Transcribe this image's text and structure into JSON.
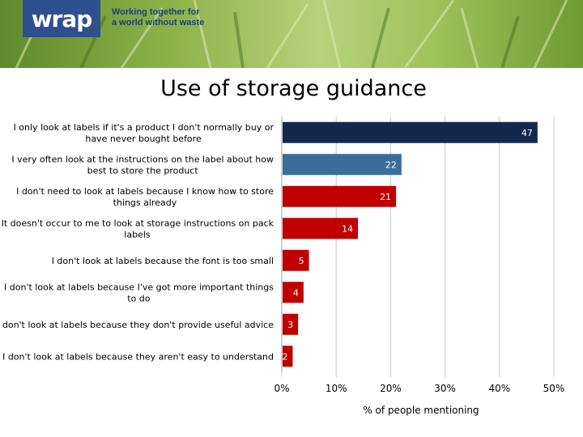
{
  "banner": {
    "logo": "wrap",
    "tagline_line1": "Working together for",
    "tagline_line2": "a world without waste"
  },
  "chart_data": {
    "type": "bar",
    "orientation": "horizontal",
    "title": "Use of storage guidance",
    "xlabel": "% of people mentioning",
    "ylabel": "",
    "xlim": [
      0,
      50
    ],
    "xticks": [
      "0%",
      "10%",
      "20%",
      "30%",
      "40%",
      "50%"
    ],
    "grid": true,
    "categories": [
      [
        "I only look at labels if it's a product I don't normally buy or",
        "have never bought before"
      ],
      [
        "I very often look at the instructions on the label about how",
        "best to store the product"
      ],
      [
        "I don't need to look at labels because I know how to store",
        "things already"
      ],
      [
        "It doesn't occur to me to look at storage instructions on pack",
        "labels"
      ],
      [
        "I don't look at labels because the font is too small"
      ],
      [
        "I don't look at labels because I've got more important things",
        "to do"
      ],
      [
        "I don't look at labels because they don't provide useful advice"
      ],
      [
        "I don't look at labels because they aren't easy to understand"
      ]
    ],
    "values": [
      47,
      22,
      21,
      14,
      5,
      4,
      3,
      2
    ],
    "colors": [
      "#13284d",
      "#3a6d9a",
      "#c00000",
      "#c00000",
      "#c00000",
      "#c00000",
      "#c00000",
      "#c00000"
    ]
  }
}
